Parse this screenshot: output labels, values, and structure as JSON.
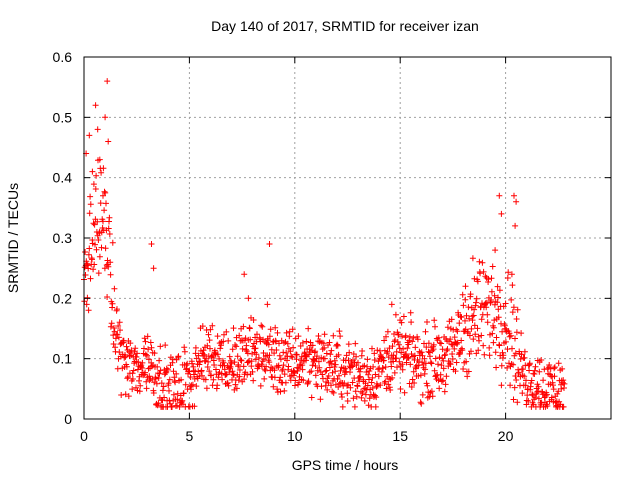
{
  "chart_data": {
    "type": "scatter",
    "title": "Day 140 of 2017, SRMTID for receiver izan",
    "xlabel": "GPS time / hours",
    "ylabel": "SRMTID / TECUs",
    "xlim": [
      0,
      25
    ],
    "ylim": [
      0,
      0.6
    ],
    "xticks": [
      0,
      5,
      10,
      15,
      20
    ],
    "yticks": [
      0,
      0.1,
      0.2,
      0.3,
      0.4,
      0.5,
      0.6
    ],
    "xtick_labels": [
      "0",
      "5",
      "10",
      "15",
      "20"
    ],
    "ytick_labels": [
      "0",
      "0.1",
      "0.2",
      "0.3",
      "0.4",
      "0.5",
      "0.6"
    ],
    "grid": true,
    "marker": "+",
    "color": "#ff0000",
    "series": [
      {
        "name": "SRMTID",
        "trend": [
          [
            0.0,
            0.22
          ],
          [
            0.3,
            0.28
          ],
          [
            0.6,
            0.32
          ],
          [
            0.9,
            0.33
          ],
          [
            1.1,
            0.3
          ],
          [
            1.4,
            0.16
          ],
          [
            1.7,
            0.12
          ],
          [
            2.0,
            0.09
          ],
          [
            2.5,
            0.08
          ],
          [
            3.0,
            0.1
          ],
          [
            3.5,
            0.07
          ],
          [
            4.0,
            0.05
          ],
          [
            4.5,
            0.05
          ],
          [
            5.0,
            0.07
          ],
          [
            5.5,
            0.09
          ],
          [
            6.0,
            0.11
          ],
          [
            6.5,
            0.1
          ],
          [
            7.0,
            0.09
          ],
          [
            7.5,
            0.1
          ],
          [
            8.0,
            0.11
          ],
          [
            8.5,
            0.11
          ],
          [
            9.0,
            0.1
          ],
          [
            9.5,
            0.09
          ],
          [
            10.0,
            0.09
          ],
          [
            10.5,
            0.1
          ],
          [
            11.0,
            0.1
          ],
          [
            11.5,
            0.09
          ],
          [
            12.0,
            0.08
          ],
          [
            12.5,
            0.08
          ],
          [
            13.0,
            0.07
          ],
          [
            13.5,
            0.07
          ],
          [
            14.0,
            0.08
          ],
          [
            14.5,
            0.1
          ],
          [
            15.0,
            0.11
          ],
          [
            15.5,
            0.1
          ],
          [
            16.0,
            0.09
          ],
          [
            16.5,
            0.1
          ],
          [
            17.0,
            0.1
          ],
          [
            17.5,
            0.11
          ],
          [
            18.0,
            0.15
          ],
          [
            18.5,
            0.17
          ],
          [
            19.0,
            0.18
          ],
          [
            19.5,
            0.18
          ],
          [
            20.0,
            0.17
          ],
          [
            20.3,
            0.14
          ],
          [
            20.6,
            0.09
          ],
          [
            21.0,
            0.07
          ],
          [
            21.5,
            0.06
          ],
          [
            22.0,
            0.05
          ],
          [
            22.5,
            0.05
          ],
          [
            22.8,
            0.05
          ]
        ],
        "peaks": [
          [
            0.1,
            0.44
          ],
          [
            0.25,
            0.47
          ],
          [
            0.4,
            0.41
          ],
          [
            0.55,
            0.52
          ],
          [
            0.65,
            0.48
          ],
          [
            0.75,
            0.43
          ],
          [
            0.9,
            0.37
          ],
          [
            1.0,
            0.5
          ],
          [
            1.1,
            0.56
          ],
          [
            1.15,
            0.46
          ],
          [
            3.2,
            0.29
          ],
          [
            3.3,
            0.25
          ],
          [
            7.6,
            0.24
          ],
          [
            7.8,
            0.2
          ],
          [
            8.8,
            0.29
          ],
          [
            8.7,
            0.19
          ],
          [
            14.6,
            0.19
          ],
          [
            19.5,
            0.28
          ],
          [
            19.7,
            0.37
          ],
          [
            19.8,
            0.34
          ],
          [
            20.4,
            0.37
          ],
          [
            20.45,
            0.32
          ],
          [
            20.5,
            0.36
          ],
          [
            18.1,
            0.22
          ],
          [
            20.3,
            0.24
          ]
        ]
      }
    ]
  }
}
